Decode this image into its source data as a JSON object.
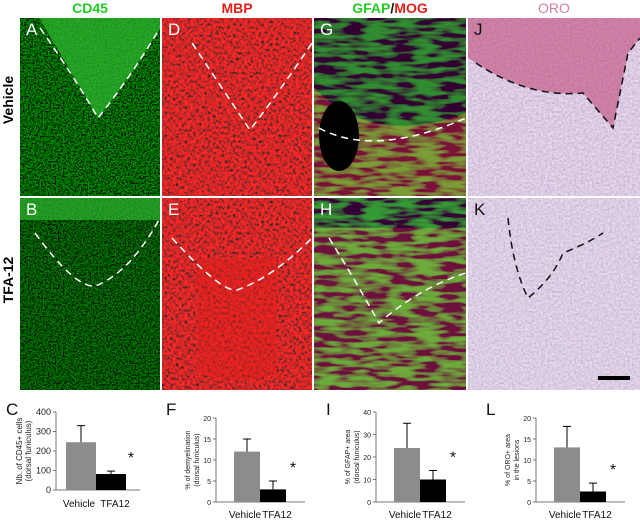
{
  "columns": [
    {
      "key": "cd45",
      "label": "CD45",
      "color": "#22cc22"
    },
    {
      "key": "mbp",
      "label": "MBP",
      "color": "#e0201a"
    },
    {
      "key": "gfap",
      "label_a": "GFAP",
      "sep": "/",
      "label_b": "MOG",
      "color_a": "#22cc22",
      "color_b": "#e0201a"
    },
    {
      "key": "oro",
      "label": "ORO",
      "color": "#d080a8"
    }
  ],
  "rows": [
    {
      "label": "Vehicle"
    },
    {
      "label": "TFA-12"
    }
  ],
  "panels": {
    "top": [
      "A",
      "D",
      "G",
      "J"
    ],
    "bottom": [
      "B",
      "E",
      "H",
      "K"
    ]
  },
  "chart_data": [
    {
      "id": "C",
      "type": "bar",
      "categories": [
        "Vehicle",
        "TFA12"
      ],
      "values": [
        245,
        82
      ],
      "errors": [
        85,
        15
      ],
      "ylabel_lines": [
        "Nb. of CD45+ cells",
        "(dorsal funiculus)"
      ],
      "ylim": [
        0,
        400
      ],
      "ticks": [
        "0",
        "100",
        "200",
        "300",
        "400"
      ],
      "tick_values": [
        0,
        100,
        200,
        300,
        400
      ],
      "significance": "*",
      "colors": [
        "#8c8c8c",
        "#000000"
      ]
    },
    {
      "id": "F",
      "type": "bar",
      "categories": [
        "Vehicle",
        "TFA12"
      ],
      "values": [
        12,
        3
      ],
      "errors": [
        3,
        2
      ],
      "ylabel_lines": [
        "% of demyelination",
        "(dorsal funiculus)"
      ],
      "ylim": [
        0,
        20
      ],
      "ticks": [
        "0",
        "5",
        "10",
        "15",
        "20"
      ],
      "tick_values": [
        0,
        5,
        10,
        15,
        20
      ],
      "significance": "*",
      "colors": [
        "#8c8c8c",
        "#000000"
      ]
    },
    {
      "id": "I",
      "type": "bar",
      "categories": [
        "Vehicle",
        "TFA12"
      ],
      "values": [
        24,
        10
      ],
      "errors": [
        11,
        4
      ],
      "ylabel_lines": [
        "% of GFAP+ area",
        "(dorsal funiculus)"
      ],
      "ylim": [
        0,
        40
      ],
      "ticks": [
        "0",
        "10",
        "20",
        "30",
        "40"
      ],
      "tick_values": [
        0,
        10,
        20,
        30,
        40
      ],
      "significance": "*",
      "colors": [
        "#8c8c8c",
        "#000000"
      ]
    },
    {
      "id": "L",
      "type": "bar",
      "categories": [
        "Vehicle",
        "TFA12"
      ],
      "values": [
        13,
        2.5
      ],
      "errors": [
        5,
        2
      ],
      "ylabel_lines": [
        "% of ORO+ area",
        "in the lesions"
      ],
      "ylim": [
        0,
        20
      ],
      "ticks": [
        "0",
        "5",
        "10",
        "15",
        "20"
      ],
      "tick_values": [
        0,
        5,
        10,
        15,
        20
      ],
      "significance": "*",
      "colors": [
        "#8c8c8c",
        "#000000"
      ]
    }
  ]
}
